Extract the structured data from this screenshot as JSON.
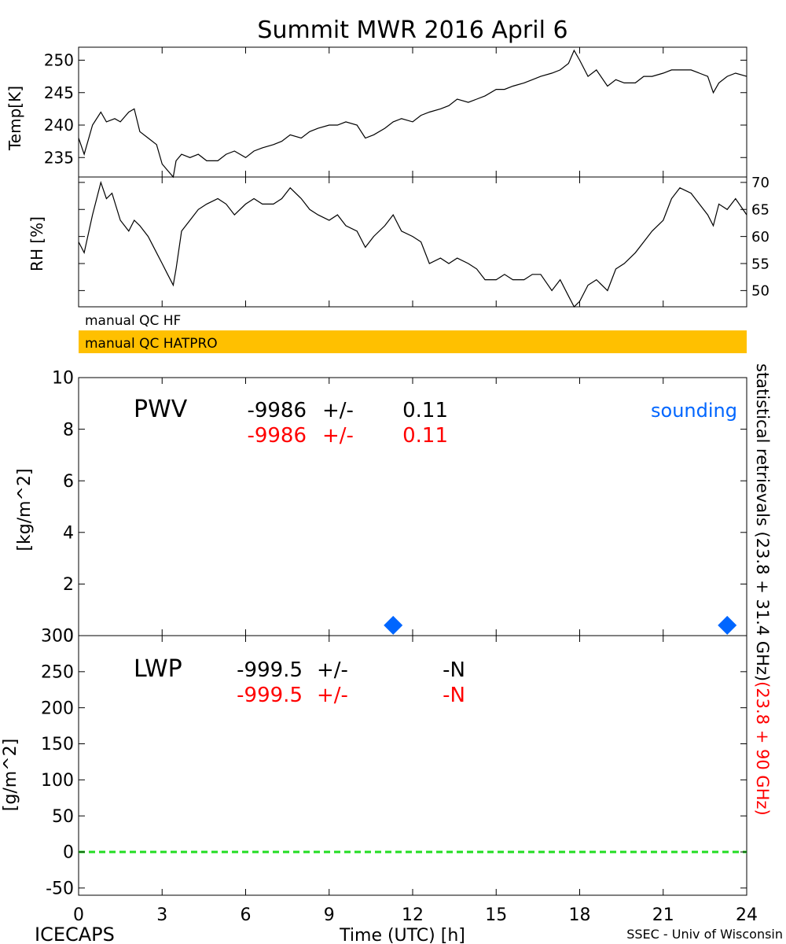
{
  "title": "Summit MWR 2016 April   6",
  "footer": {
    "left": "ICECAPS",
    "center": "Time (UTC) [h]",
    "right": "SSEC - Univ of Wisconsin"
  },
  "qc_bars": {
    "hf_label": "manual QC HF",
    "hatpro_label": "manual QC HATPRO",
    "hatpro_color": "#ffc000"
  },
  "right_side_label": {
    "black": "statistical retrievals (23.8 + 31.4 GHz)",
    "red": "(23.8 + 90 GHz)"
  },
  "pwv_stats": {
    "label": "PWV",
    "row1": {
      "value": "-9986",
      "pm": "+/-",
      "err": "0.11"
    },
    "row2": {
      "value": "-9986",
      "pm": "+/-",
      "err": "0.11"
    },
    "legend": "sounding"
  },
  "lwp_stats": {
    "label": "LWP",
    "row1": {
      "value": "-999.5",
      "pm": "+/-",
      "err": "-N"
    },
    "row2": {
      "value": "-999.5",
      "pm": "+/-",
      "err": "-N"
    }
  },
  "colors": {
    "black_series": "#000000",
    "red_series": "#ff0000",
    "sounding": "#0066ff",
    "zero_line": "#22dd22"
  },
  "chart_data": [
    {
      "type": "line",
      "ylabel": "Temp[K]",
      "xlim": [
        0,
        24
      ],
      "ylim": [
        232,
        252
      ],
      "yticks": [
        235,
        240,
        245,
        250
      ],
      "grid": false,
      "series": [
        {
          "x": [
            0,
            0.2,
            0.5,
            0.8,
            1.0,
            1.3,
            1.5,
            1.8,
            2.0,
            2.2,
            2.5,
            2.8,
            3.0,
            3.2,
            3.4,
            3.5,
            3.7,
            4.0,
            4.3,
            4.6,
            5.0,
            5.3,
            5.6,
            6.0,
            6.3,
            6.6,
            7.0,
            7.3,
            7.6,
            8.0,
            8.3,
            8.6,
            9.0,
            9.3,
            9.6,
            10.0,
            10.3,
            10.6,
            11.0,
            11.3,
            11.6,
            12.0,
            12.3,
            12.6,
            13.0,
            13.3,
            13.6,
            14.0,
            14.3,
            14.6,
            15.0,
            15.3,
            15.6,
            16.0,
            16.3,
            16.6,
            17.0,
            17.3,
            17.6,
            17.8,
            18.0,
            18.3,
            18.6,
            19.0,
            19.3,
            19.6,
            20.0,
            20.3,
            20.6,
            21.0,
            21.3,
            21.6,
            22.0,
            22.3,
            22.6,
            22.8,
            23.0,
            23.3,
            23.6,
            24.0
          ],
          "values": [
            238,
            235.5,
            240,
            242,
            240.5,
            241,
            240.5,
            242,
            242.5,
            239,
            238,
            237,
            234,
            233,
            232,
            234.5,
            235.5,
            235,
            235.5,
            234.5,
            234.5,
            235.5,
            236,
            235,
            236,
            236.5,
            237,
            237.5,
            238.5,
            238,
            239,
            239.5,
            240,
            240,
            240.5,
            240,
            238,
            238.5,
            239.5,
            240.5,
            241,
            240.5,
            241.5,
            242,
            242.5,
            243,
            244,
            243.5,
            244,
            244.5,
            245.5,
            245.5,
            246,
            246.5,
            247,
            247.5,
            248,
            248.5,
            249.5,
            251.5,
            250,
            247.5,
            248.5,
            246,
            247,
            246.5,
            246.5,
            247.5,
            247.5,
            248,
            248.5,
            248.5,
            248.5,
            248,
            247.5,
            245,
            246.5,
            247.5,
            248,
            247.5
          ]
        }
      ]
    },
    {
      "type": "line",
      "ylabel": "RH [%]",
      "xlim": [
        0,
        24
      ],
      "ylim": [
        47,
        71
      ],
      "yticks": [
        50,
        55,
        60,
        65,
        70
      ],
      "grid": false,
      "series": [
        {
          "x": [
            0,
            0.2,
            0.5,
            0.8,
            1.0,
            1.2,
            1.5,
            1.8,
            2.0,
            2.2,
            2.5,
            2.8,
            3.0,
            3.2,
            3.4,
            3.5,
            3.7,
            4.0,
            4.3,
            4.6,
            5.0,
            5.3,
            5.6,
            6.0,
            6.3,
            6.6,
            7.0,
            7.3,
            7.6,
            8.0,
            8.3,
            8.6,
            9.0,
            9.3,
            9.6,
            10.0,
            10.3,
            10.6,
            11.0,
            11.3,
            11.6,
            12.0,
            12.3,
            12.6,
            13.0,
            13.3,
            13.6,
            14.0,
            14.3,
            14.6,
            15.0,
            15.3,
            15.6,
            16.0,
            16.3,
            16.6,
            17.0,
            17.3,
            17.6,
            17.8,
            18.0,
            18.3,
            18.6,
            19.0,
            19.3,
            19.6,
            20.0,
            20.3,
            20.6,
            21.0,
            21.3,
            21.6,
            22.0,
            22.3,
            22.6,
            22.8,
            23.0,
            23.3,
            23.6,
            24.0
          ],
          "values": [
            59,
            57,
            64,
            70,
            67,
            68,
            63,
            61,
            63,
            62,
            60,
            57,
            55,
            53,
            51,
            54,
            61,
            63,
            65,
            66,
            67,
            66,
            64,
            66,
            67,
            66,
            66,
            67,
            69,
            67,
            65,
            64,
            63,
            64,
            62,
            61,
            58,
            60,
            62,
            64,
            61,
            60,
            59,
            55,
            56,
            55,
            56,
            55,
            54,
            52,
            52,
            53,
            52,
            52,
            53,
            53,
            50,
            52,
            49,
            47,
            48,
            51,
            52,
            50,
            54,
            55,
            57,
            59,
            61,
            63,
            67,
            69,
            68,
            66,
            64,
            62,
            66,
            65,
            67,
            64
          ]
        }
      ]
    },
    {
      "type": "scatter",
      "ylabel": "[kg/m^2]",
      "xlim": [
        0,
        24
      ],
      "ylim": [
        0,
        10
      ],
      "yticks": [
        0,
        2,
        4,
        6,
        8,
        10
      ],
      "grid": false,
      "series": [
        {
          "name": "sounding",
          "x": [
            11.3,
            23.3
          ],
          "values": [
            0.4,
            0.4
          ]
        }
      ]
    },
    {
      "type": "line",
      "ylabel": "[g/m^2]",
      "xlabel": "Time (UTC) [h]",
      "xlim": [
        0,
        24
      ],
      "xticks": [
        0,
        3,
        6,
        9,
        12,
        15,
        18,
        21,
        24
      ],
      "ylim": [
        -60,
        300
      ],
      "yticks": [
        -50,
        0,
        50,
        100,
        150,
        200,
        250,
        300
      ],
      "grid": false,
      "series": [
        {
          "x": [
            0,
            24
          ],
          "values": [
            0,
            0
          ]
        }
      ]
    }
  ]
}
